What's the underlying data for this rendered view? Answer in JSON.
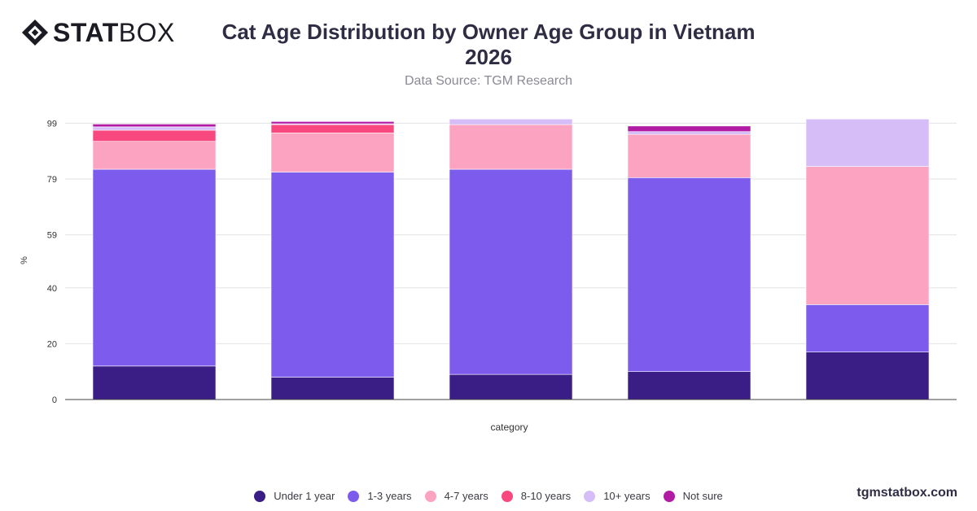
{
  "logo": {
    "bold": "STAT",
    "light": "BOX"
  },
  "brand_url": "tgmstatbox.com",
  "chart_data": {
    "type": "bar",
    "stacked": true,
    "title": "Cat Age Distribution by Owner Age Group in Vietnam 2026",
    "subtitle": "Data Source: TGM Research",
    "xlabel": "category",
    "ylabel": "%",
    "ylim": [
      0,
      100
    ],
    "yticks": [
      0,
      20,
      40,
      59,
      79,
      99
    ],
    "grid": true,
    "legend_position": "bottom",
    "categories": [
      "",
      "",
      "",
      "",
      ""
    ],
    "series": [
      {
        "name": "Under 1 year",
        "color": "#3a1e85",
        "values": [
          12,
          8,
          9,
          10,
          17
        ]
      },
      {
        "name": "1-3 years",
        "color": "#7d5ced",
        "values": [
          70.5,
          73.5,
          73.5,
          69.5,
          17
        ]
      },
      {
        "name": "4-7 years",
        "color": "#fca3c2",
        "values": [
          10,
          14,
          16,
          15.5,
          49.5
        ]
      },
      {
        "name": "8-10 years",
        "color": "#f7497f",
        "values": [
          4,
          3,
          0,
          0,
          0
        ]
      },
      {
        "name": "10+ years",
        "color": "#d6bdf8",
        "values": [
          1.2,
          0.3,
          2,
          1,
          17
        ]
      },
      {
        "name": "Not sure",
        "color": "#b21ba4",
        "values": [
          1,
          0.8,
          0,
          2,
          0
        ]
      }
    ]
  }
}
